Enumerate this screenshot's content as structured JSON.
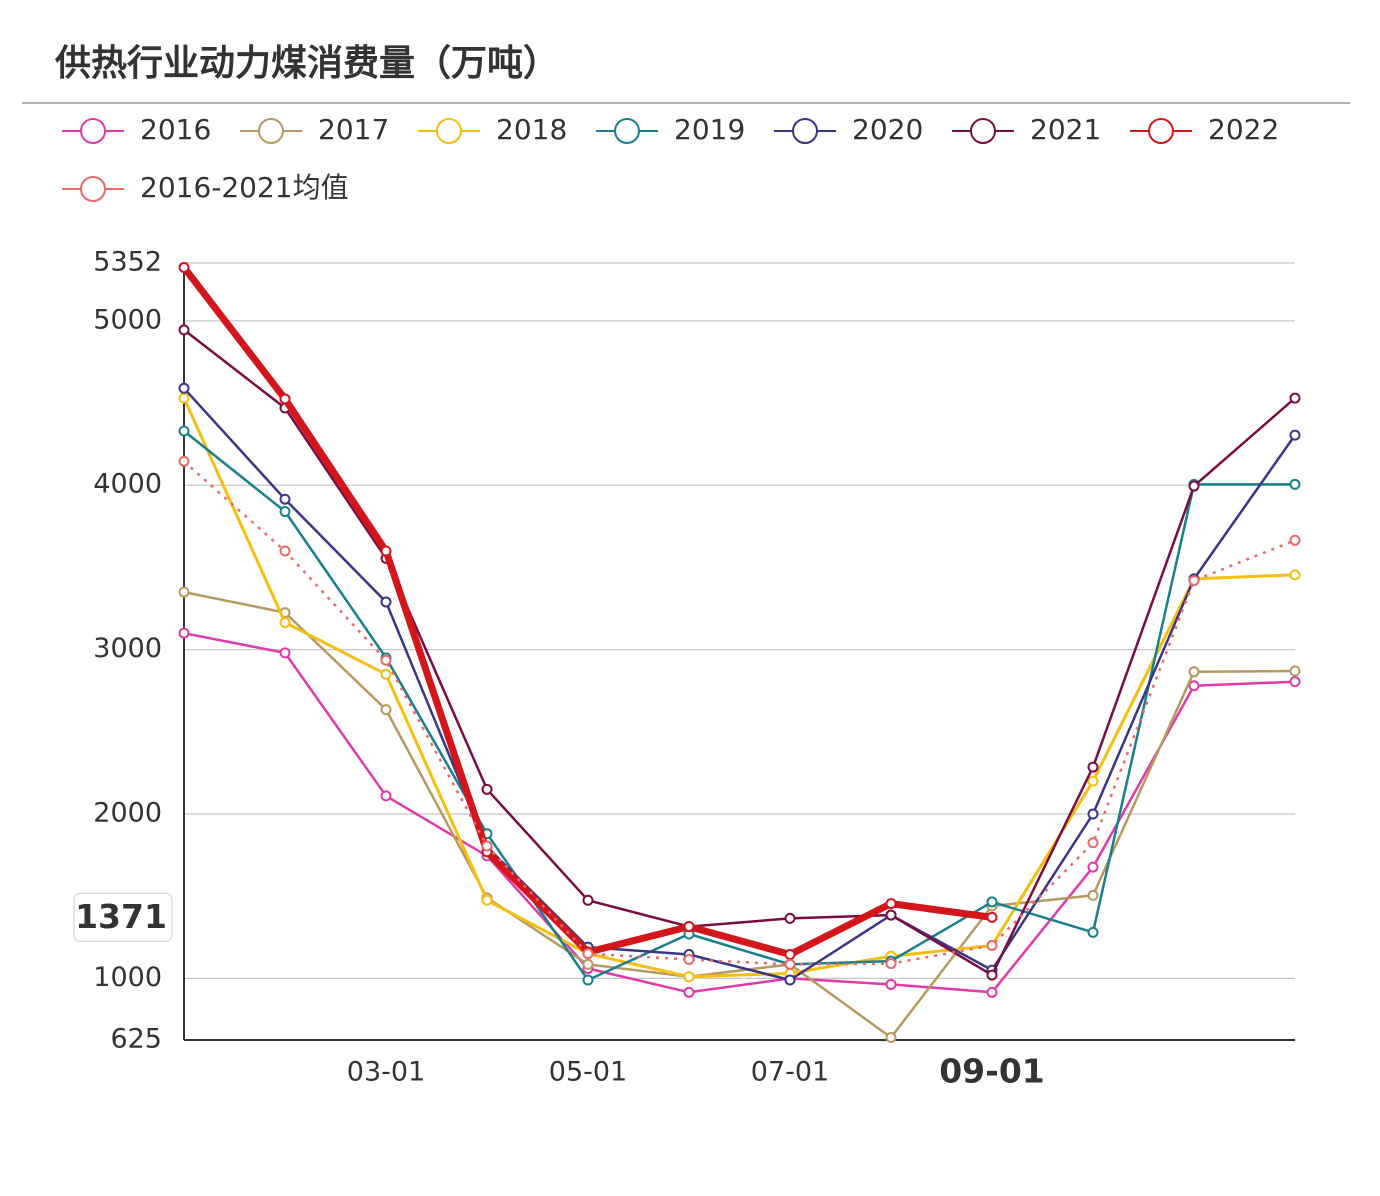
{
  "chart_data": {
    "type": "line",
    "title": "供热行业动力煤消费量（万吨）",
    "categories": [
      null,
      null,
      "03-01",
      null,
      "05-01",
      null,
      "07-01",
      null,
      "09-01",
      null,
      null,
      null
    ],
    "ylim": [
      625,
      5352
    ],
    "yticks": [
      625,
      1000,
      2000,
      3000,
      4000,
      5000,
      5352
    ],
    "grid": true,
    "pointer": {
      "y": 1371,
      "category": 8
    },
    "series": [
      {
        "name": "2016",
        "color": "#e03aa8",
        "width": 2.5,
        "values": [
          3100,
          2980,
          2110,
          1745,
          1060,
          915,
          1000,
          963,
          915,
          1677,
          2780,
          2805
        ]
      },
      {
        "name": "2017",
        "color": "#b59a60",
        "width": 2.5,
        "values": [
          3350,
          3225,
          2635,
          1490,
          1085,
          1010,
          1085,
          640,
          1440,
          1505,
          2865,
          2870
        ]
      },
      {
        "name": "2018",
        "color": "#f5be10",
        "width": 3,
        "values": [
          4530,
          3165,
          2850,
          1475,
          1150,
          1010,
          1030,
          1135,
          1200,
          2200,
          3430,
          3455
        ]
      },
      {
        "name": "2019",
        "color": "#17808c",
        "width": 2.5,
        "values": [
          4330,
          3840,
          2950,
          1880,
          990,
          1270,
          1085,
          1105,
          1465,
          1280,
          4005,
          4005
        ]
      },
      {
        "name": "2020",
        "color": "#3b3585",
        "width": 2.5,
        "values": [
          4590,
          3915,
          3290,
          1800,
          1190,
          1145,
          990,
          1385,
          1050,
          2000,
          3430,
          4305
        ]
      },
      {
        "name": "2021",
        "color": "#7a0c44",
        "width": 2.5,
        "values": [
          4945,
          4470,
          3555,
          2150,
          1475,
          1315,
          1365,
          1385,
          1020,
          2285,
          3995,
          4530
        ]
      },
      {
        "name": "2022",
        "color": "#d2161c",
        "width": 7,
        "values": [
          5325,
          4525,
          3600,
          1770,
          1160,
          1315,
          1145,
          1455,
          1371,
          null,
          null,
          null
        ]
      },
      {
        "name": "2016-2021均值",
        "color": "#e86a6a",
        "width": 2.5,
        "dash": true,
        "values": [
          4145,
          3600,
          2935,
          1805,
          1150,
          1115,
          1085,
          1090,
          1200,
          1825,
          3420,
          3665
        ]
      }
    ]
  }
}
